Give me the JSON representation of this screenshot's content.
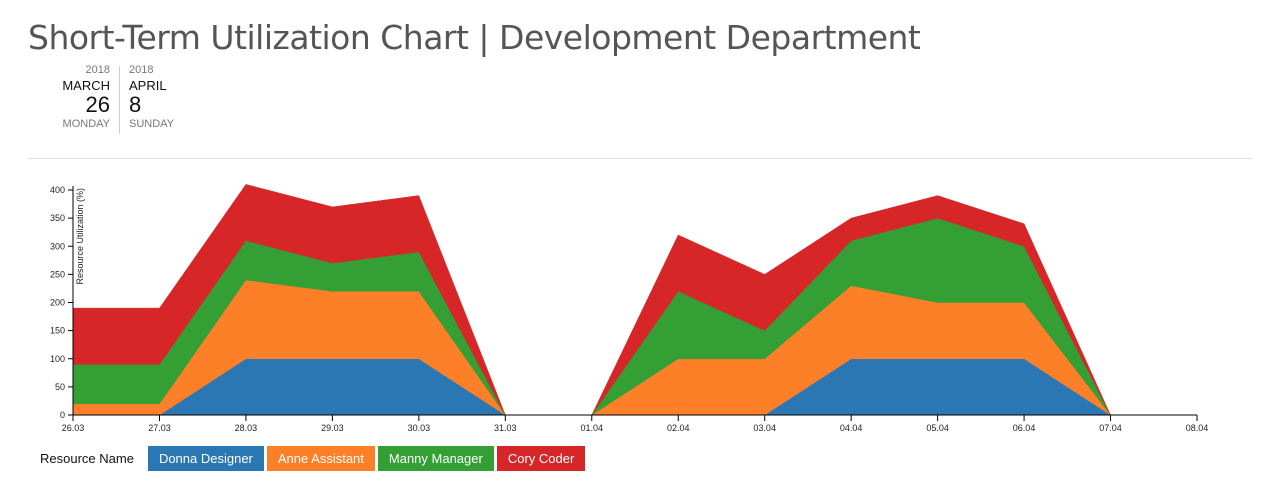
{
  "header": {
    "title": "Short-Term Utilization Chart | Development Department"
  },
  "date_range": {
    "start": {
      "year": "2018",
      "month": "MARCH",
      "day": "26",
      "weekday": "MONDAY"
    },
    "end": {
      "year": "2018",
      "month": "APRIL",
      "day": "8",
      "weekday": "SUNDAY"
    }
  },
  "legend": {
    "label": "Resource Name"
  },
  "colors": {
    "Donna Designer": "#2a77b4",
    "Anne Assistant": "#fd7f28",
    "Manny Manager": "#339f34",
    "Cory Coder": "#d62628"
  },
  "chart_data": {
    "type": "area",
    "stacked": true,
    "ylabel": "Resource Utilization (%)",
    "xlabel": "",
    "ylim": [
      0,
      400
    ],
    "yticks": [
      0,
      50,
      100,
      150,
      200,
      250,
      300,
      350,
      400
    ],
    "x": [
      "26.03",
      "27.03",
      "28.03",
      "29.03",
      "30.03",
      "31.03",
      "01.04",
      "02.04",
      "03.04",
      "04.04",
      "05.04",
      "06.04",
      "07.04",
      "08.04"
    ],
    "segments": [
      [
        0,
        5
      ],
      [
        6,
        12
      ]
    ],
    "series": [
      {
        "name": "Donna Designer",
        "values": [
          0,
          0,
          100,
          100,
          100,
          0,
          0,
          0,
          0,
          100,
          100,
          100,
          0,
          null
        ]
      },
      {
        "name": "Anne Assistant",
        "values": [
          20,
          20,
          140,
          120,
          120,
          0,
          0,
          100,
          100,
          130,
          100,
          100,
          0,
          null
        ]
      },
      {
        "name": "Manny Manager",
        "values": [
          70,
          70,
          70,
          50,
          70,
          0,
          0,
          120,
          50,
          80,
          150,
          100,
          0,
          null
        ]
      },
      {
        "name": "Cory Coder",
        "values": [
          100,
          100,
          100,
          100,
          100,
          0,
          0,
          100,
          100,
          40,
          40,
          40,
          0,
          null
        ]
      }
    ],
    "legend_position": "bottom-left"
  }
}
